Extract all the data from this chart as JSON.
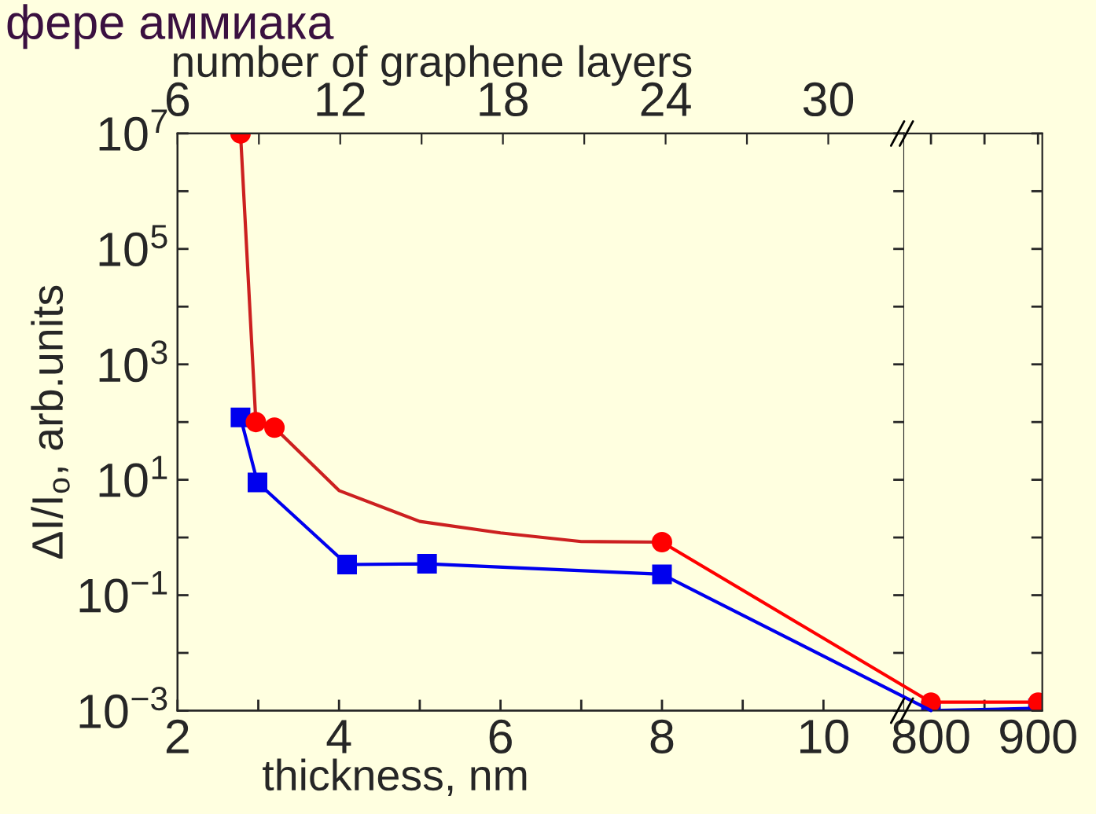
{
  "chart_data": [
    {
      "type": "line",
      "title": "фере аммиака",
      "xlabel": "thickness, nm",
      "ylabel": "ΔI/I$_{o}$, arb.units",
      "x2label": "number of graphene layers",
      "log": "y",
      "grid": false,
      "legend": false,
      "xlim": [
        2,
        11
      ],
      "xticks": [
        2,
        {
          "value": 3,
          "label": null
        },
        4,
        {
          "value": 5,
          "label": null
        },
        6,
        {
          "value": 7,
          "label": null
        },
        8,
        {
          "value": 9,
          "label": null
        },
        10
      ],
      "x2lim": [
        6,
        32.8
      ],
      "x2ticks": [
        6,
        {
          "value": 9,
          "label": null
        },
        12,
        {
          "value": 15,
          "label": null
        },
        18,
        {
          "value": 21,
          "label": null
        },
        24,
        {
          "value": 27,
          "label": null
        },
        30
      ],
      "ylim": [
        0.001,
        10000000
      ],
      "yticks": [
        {
          "value": 0.001,
          "label": "10$^{−3}$"
        },
        {
          "value": 0.01,
          "label": null
        },
        {
          "value": 0.1,
          "label": "10$^{−1}$"
        },
        {
          "value": 1,
          "label": null
        },
        {
          "value": 10,
          "label": "10$^{1}$"
        },
        {
          "value": 100,
          "label": null
        },
        {
          "value": 1000,
          "label": "10$^{3}$"
        },
        {
          "value": 10000,
          "label": null
        },
        {
          "value": 100000,
          "label": "10$^{5}$"
        },
        {
          "value": 1000000,
          "label": null
        },
        {
          "value": 10000000,
          "label": "10$^{7}$"
        }
      ],
      "series": [
        {
          "color": "#cc2020",
          "type": "line",
          "marker": "none",
          "x": [
            2.78,
            2.97,
            3.2,
            4,
            5,
            6,
            7,
            8
          ],
          "values": [
            10000000,
            100,
            80,
            6.5,
            1.9,
            1.2,
            0.85,
            0.83
          ]
        },
        {
          "color": "#ff0000",
          "type": "scatter",
          "marker": "circle",
          "x": [
            2.78,
            2.97,
            3.2,
            8
          ],
          "values": [
            10000000,
            100,
            80,
            0.83
          ]
        },
        {
          "color": "#0000ee",
          "type": "line",
          "marker": "square",
          "x": [
            2.78,
            2.99,
            4.1,
            5.09,
            8
          ],
          "values": [
            120,
            9,
            0.34,
            0.35,
            0.23
          ]
        }
      ]
    },
    {
      "type": "line",
      "log": "y",
      "grid": false,
      "legend": false,
      "tick_labels": "x",
      "xlim": [
        775,
        904
      ],
      "xticks": [
        800,
        {
          "value": 850,
          "label": null
        },
        900
      ],
      "ylim": [
        0.001,
        10000000
      ],
      "yticks": [
        {
          "value": 0.001,
          "label": null
        },
        {
          "value": 0.01,
          "label": null
        },
        {
          "value": 0.1,
          "label": null
        },
        {
          "value": 1,
          "label": null
        },
        {
          "value": 10,
          "label": null
        },
        {
          "value": 100,
          "label": null
        },
        {
          "value": 1000,
          "label": null
        },
        {
          "value": 10000,
          "label": null
        },
        {
          "value": 100000,
          "label": null
        },
        {
          "value": 1000000,
          "label": null
        },
        {
          "value": 10000000,
          "label": null
        }
      ],
      "series": [
        {
          "color": "#0000ee",
          "type": "line",
          "marker": "square",
          "x": [
            800,
            900
          ],
          "values": [
            0.001,
            0.0011
          ]
        },
        {
          "color": "#ff0000",
          "type": "line",
          "marker": "circle",
          "x": [
            800,
            900
          ],
          "values": [
            0.0014,
            0.0014
          ]
        }
      ]
    }
  ]
}
